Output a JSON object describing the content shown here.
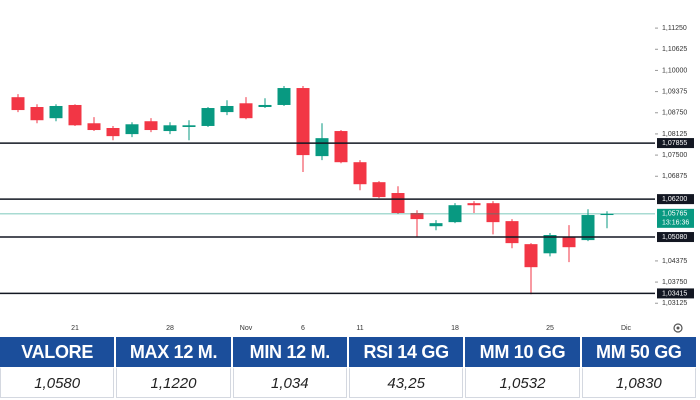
{
  "chart_data": {
    "type": "candlestick",
    "categories": [
      null,
      null,
      null,
      "21",
      null,
      null,
      null,
      null,
      "28",
      null,
      null,
      null,
      "Nov",
      null,
      null,
      "6",
      null,
      null,
      "11",
      null,
      null,
      null,
      null,
      "18",
      null,
      null,
      null,
      null,
      "25",
      null,
      null,
      null,
      "Dic"
    ],
    "open": [
      1.0921,
      1.0892,
      1.0859,
      1.0898,
      1.0844,
      1.083,
      1.0812,
      1.085,
      1.0821,
      1.0833,
      1.0836,
      1.0877,
      1.0903,
      1.0892,
      1.0898,
      1.0948,
      1.0747,
      1.0821,
      1.0729,
      1.067,
      1.0638,
      1.0579,
      1.054,
      1.0552,
      1.0608,
      1.0608,
      1.0555,
      1.0487,
      1.046,
      1.0508,
      1.0499,
      1.0573,
      null
    ],
    "high": [
      1.093,
      1.09,
      1.09,
      1.09,
      1.0862,
      1.0836,
      1.0847,
      1.0859,
      1.0847,
      1.0853,
      1.0892,
      1.0912,
      1.0921,
      1.0918,
      1.0954,
      1.0954,
      1.0844,
      1.0824,
      1.0735,
      1.0673,
      1.0658,
      1.0587,
      1.0558,
      1.0608,
      1.0614,
      1.0614,
      1.0561,
      1.049,
      1.052,
      1.0543,
      1.059,
      1.0584,
      null
    ],
    "low": [
      1.0877,
      1.0844,
      1.085,
      1.0836,
      1.0821,
      1.0794,
      1.0803,
      1.0818,
      1.0812,
      1.0794,
      1.0833,
      1.0868,
      1.0856,
      1.0889,
      1.0895,
      1.07,
      1.0735,
      1.0726,
      1.0646,
      1.0623,
      1.0576,
      1.0508,
      1.0528,
      1.0549,
      1.0579,
      1.0516,
      1.0475,
      1.0339,
      1.0451,
      1.0434,
      1.0496,
      1.0534,
      null
    ],
    "close": [
      1.0883,
      1.0853,
      1.0895,
      1.0838,
      1.0824,
      1.0806,
      1.0841,
      1.0824,
      1.0838,
      1.0838,
      1.0889,
      1.0895,
      1.0859,
      1.0898,
      1.0948,
      1.075,
      1.08,
      1.0729,
      1.0664,
      1.0626,
      1.0579,
      1.0561,
      1.0549,
      1.0602,
      1.0602,
      1.0552,
      1.049,
      1.0419,
      1.0514,
      1.0478,
      1.0573,
      1.05765,
      null
    ],
    "up_color": "#089981",
    "down_color": "#f23645",
    "ylim": [
      1.0263,
      1.1208
    ],
    "yticks": [
      {
        "value": 1.1125,
        "label": "1,11250"
      },
      {
        "value": 1.10625,
        "label": "1,10625"
      },
      {
        "value": 1.1,
        "label": "1,10000"
      },
      {
        "value": 1.09375,
        "label": "1,09375"
      },
      {
        "value": 1.0875,
        "label": "1,08750"
      },
      {
        "value": 1.08125,
        "label": "1,08125"
      },
      {
        "value": 1.075,
        "label": "1,07500"
      },
      {
        "value": 1.06875,
        "label": "1,06875"
      },
      {
        "value": 1.04375,
        "label": "1,04375"
      },
      {
        "value": 1.0375,
        "label": "1,03750"
      },
      {
        "value": 1.03125,
        "label": "1,03125"
      }
    ],
    "levels": [
      {
        "value": 1.07855,
        "label": "1,07855"
      },
      {
        "value": 1.062,
        "label": "1,06200"
      },
      {
        "value": 1.0508,
        "label": "1,05080"
      },
      {
        "value": 1.03415,
        "label": "1,03415"
      }
    ],
    "level_color": "#131722",
    "last_price": {
      "value": 1.05765,
      "label": "1,05765",
      "time": "13:16:36"
    }
  },
  "table": {
    "header": [
      "VALORE",
      "MAX 12 M.",
      "MIN 12 M.",
      "RSI 14 GG",
      "MM 10 GG",
      "MM 50 GG"
    ],
    "rows": [
      [
        "1,0580",
        "1,1220",
        "1,034",
        "43,25",
        "1,0532",
        "1,0830"
      ]
    ]
  }
}
